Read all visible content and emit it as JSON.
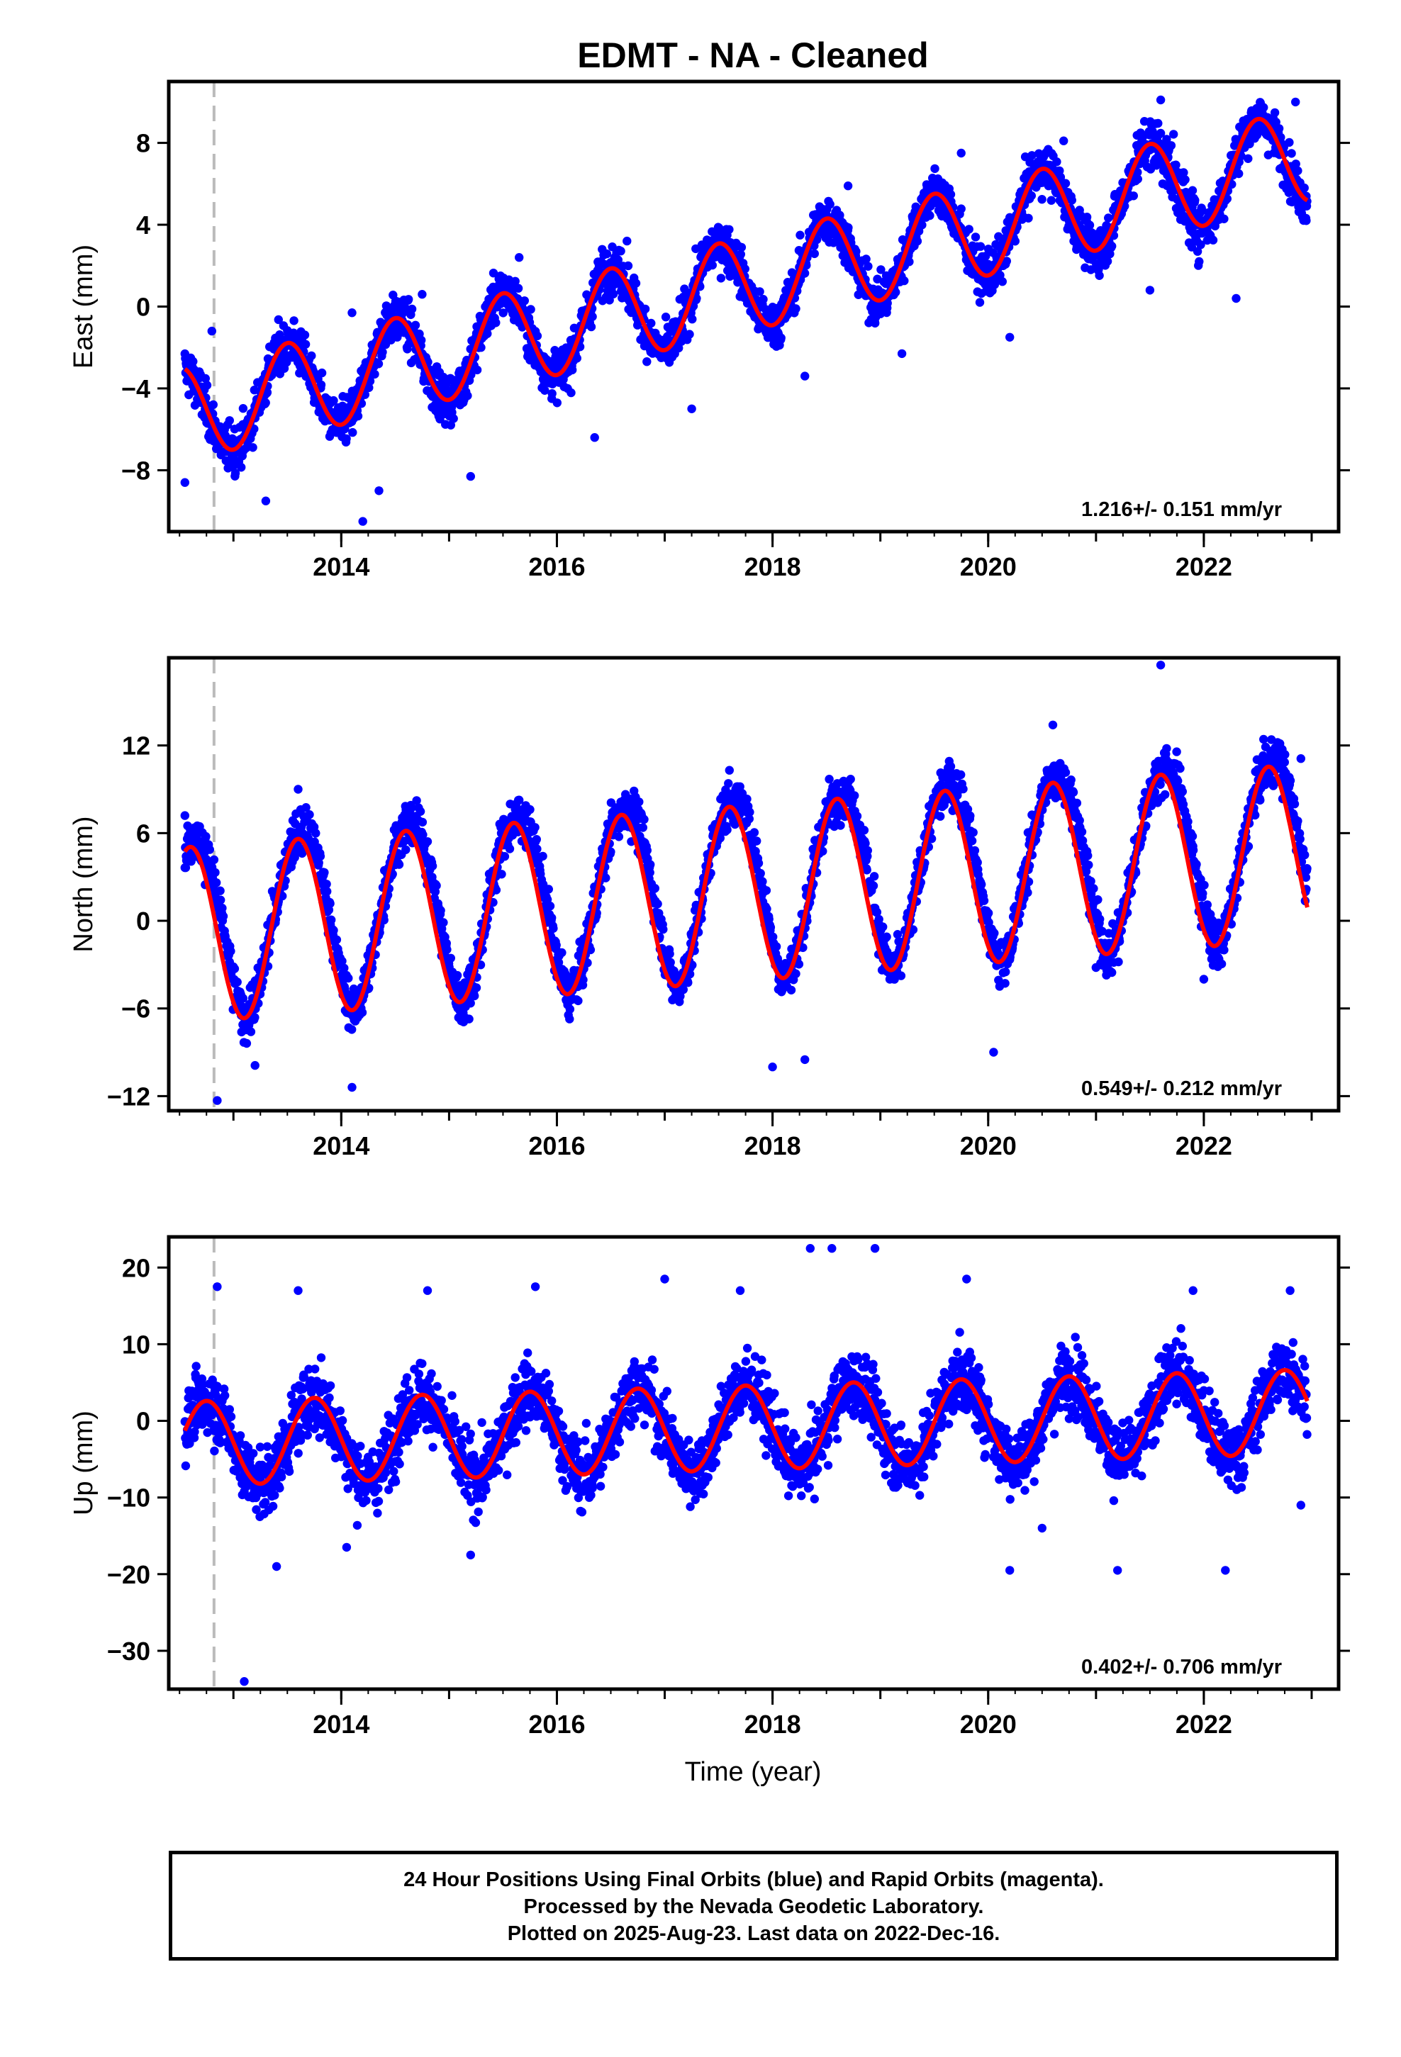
{
  "chart_data": {
    "type": "scatter",
    "title": "EDMT  - NA - Cleaned",
    "xlabel": "Time (year)",
    "x_ticks": [
      2014,
      2016,
      2018,
      2020,
      2022
    ],
    "xlim": [
      2012.4,
      2023.25
    ],
    "reference_line_x": 2012.82,
    "colors": {
      "points": "#0000ff",
      "fit": "#ff0000",
      "reference_line": "#bbbbbb"
    },
    "panels": [
      {
        "name": "east",
        "ylabel": "East (mm)",
        "ylim": [
          -11,
          11
        ],
        "y_ticks": [
          -8,
          -4,
          0,
          4,
          8
        ],
        "y_tick_labels": [
          "−8",
          "−4",
          "0",
          "4",
          "8"
        ],
        "rate_label": "1.216+/- 0.151 mm/yr",
        "fit": {
          "base": -5.3,
          "rate": 1.216,
          "amplitude": 2.3,
          "phase_year": 2013.5
        },
        "points": [
          [
            2012.55,
            -8.6
          ],
          [
            2012.8,
            -1.2
          ],
          [
            2013.3,
            -9.5
          ],
          [
            2014.1,
            -0.3
          ],
          [
            2014.2,
            -10.5
          ],
          [
            2014.35,
            -9.0
          ],
          [
            2014.75,
            0.6
          ],
          [
            2015.2,
            -8.3
          ],
          [
            2015.65,
            2.4
          ],
          [
            2016.35,
            -6.4
          ],
          [
            2016.65,
            3.2
          ],
          [
            2017.25,
            -5.0
          ],
          [
            2017.65,
            3.0
          ],
          [
            2018.3,
            -3.4
          ],
          [
            2018.7,
            5.9
          ],
          [
            2019.2,
            -2.3
          ],
          [
            2019.75,
            7.5
          ],
          [
            2020.2,
            -1.5
          ],
          [
            2020.7,
            8.1
          ],
          [
            2021.6,
            10.1
          ],
          [
            2021.5,
            0.8
          ],
          [
            2022.3,
            0.4
          ],
          [
            2022.85,
            10.0
          ],
          [
            2022.95,
            4.2
          ]
        ]
      },
      {
        "name": "north",
        "ylabel": "North (mm)",
        "ylim": [
          -13,
          18
        ],
        "y_ticks": [
          -12,
          -6,
          0,
          6,
          12
        ],
        "y_tick_labels": [
          "−12",
          "−6",
          "0",
          "6",
          "12"
        ],
        "rate_label": "0.549+/- 0.212 mm/yr",
        "fit": {
          "base": -1.0,
          "rate": 0.549,
          "amplitude": 6.0,
          "phase_year": 2013.6
        },
        "points": [
          [
            2012.55,
            7.2
          ],
          [
            2012.85,
            -12.3
          ],
          [
            2013.2,
            -9.9
          ],
          [
            2014.1,
            -11.4
          ],
          [
            2013.6,
            9.0
          ],
          [
            2014.6,
            7.6
          ],
          [
            2015.6,
            6.6
          ],
          [
            2016.6,
            8.0
          ],
          [
            2017.6,
            10.3
          ],
          [
            2018.6,
            9.4
          ],
          [
            2019.6,
            9.9
          ],
          [
            2020.6,
            13.4
          ],
          [
            2021.6,
            17.5
          ],
          [
            2018.3,
            -9.5
          ],
          [
            2018.0,
            -10.0
          ],
          [
            2020.05,
            -9.0
          ],
          [
            2021.0,
            -3.2
          ],
          [
            2022.0,
            -4.0
          ],
          [
            2022.55,
            11.3
          ],
          [
            2022.9,
            11.1
          ]
        ]
      },
      {
        "name": "up",
        "ylabel": "Up (mm)",
        "ylim": [
          -35,
          24
        ],
        "y_ticks": [
          -30,
          -20,
          -10,
          0,
          10,
          20
        ],
        "y_tick_labels": [
          "−30",
          "−20",
          "−10",
          "0",
          "10",
          "20"
        ],
        "rate_label": "0.402+/- 0.706 mm/yr",
        "fit": {
          "base": -3.0,
          "rate": 0.402,
          "amplitude": 5.5,
          "phase_year": 2013.75
        },
        "points": [
          [
            2012.85,
            17.5
          ],
          [
            2013.1,
            -34.0
          ],
          [
            2013.4,
            -19.0
          ],
          [
            2013.6,
            17.0
          ],
          [
            2014.05,
            -16.5
          ],
          [
            2014.8,
            17.0
          ],
          [
            2015.2,
            -17.5
          ],
          [
            2015.8,
            17.5
          ],
          [
            2016.3,
            -10.0
          ],
          [
            2017.0,
            18.5
          ],
          [
            2017.7,
            17.0
          ],
          [
            2018.35,
            22.5
          ],
          [
            2018.55,
            22.5
          ],
          [
            2018.95,
            22.5
          ],
          [
            2019.8,
            18.5
          ],
          [
            2020.2,
            -19.5
          ],
          [
            2020.5,
            -14.0
          ],
          [
            2021.2,
            -19.5
          ],
          [
            2021.9,
            17.0
          ],
          [
            2022.2,
            -19.5
          ],
          [
            2022.8,
            17.0
          ],
          [
            2022.9,
            -11.0
          ]
        ]
      }
    ]
  },
  "footer": {
    "line1": "24 Hour Positions Using Final Orbits (blue) and Rapid Orbits (magenta).",
    "line2": "Processed by the Nevada Geodetic Laboratory.",
    "line3": "Plotted on 2025-Aug-23. Last data on 2022-Dec-16."
  }
}
